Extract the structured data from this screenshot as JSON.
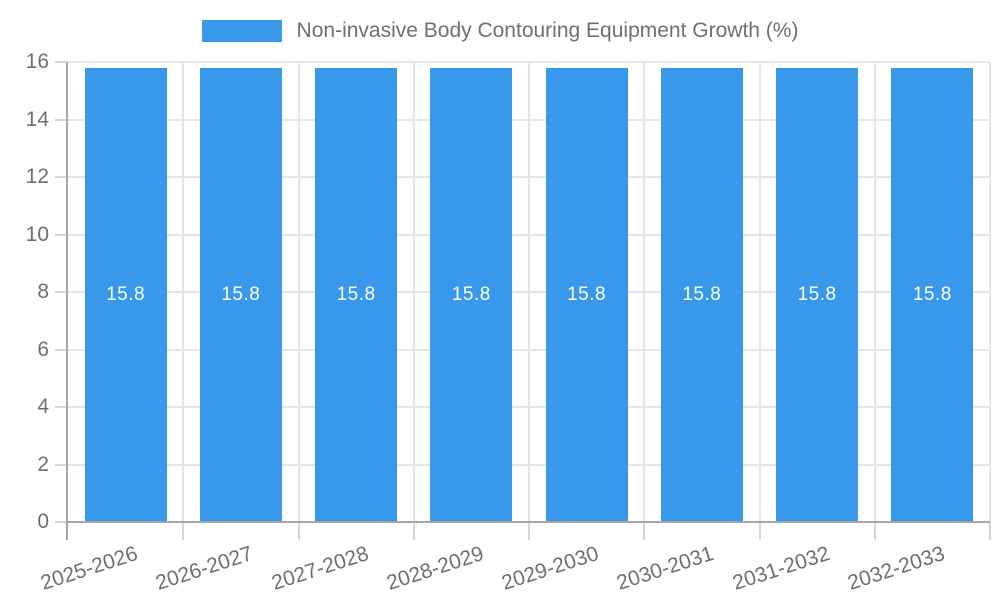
{
  "chart_data": {
    "type": "bar",
    "title": "Non-invasive Body Contouring Equipment Growth (%)",
    "legend_position": "top",
    "grid": true,
    "categories": [
      "2025-2026",
      "2026-2027",
      "2027-2028",
      "2028-2029",
      "2029-2030",
      "2030-2031",
      "2031-2032",
      "2032-2033"
    ],
    "values": [
      15.8,
      15.8,
      15.8,
      15.8,
      15.8,
      15.8,
      15.8,
      15.8
    ],
    "bar_labels": [
      "15.8",
      "15.8",
      "15.8",
      "15.8",
      "15.8",
      "15.8",
      "15.8",
      "15.8"
    ],
    "xlabel": "",
    "ylabel": "",
    "ylim": [
      0,
      16
    ],
    "yticks": [
      0,
      2,
      4,
      6,
      8,
      10,
      12,
      14,
      16
    ],
    "colors": {
      "bar": "#3898EC",
      "bar_label": "#FFFFFF",
      "axis_text": "#707070",
      "axis_line": "#A6A6A6",
      "gridline": "#E6E6E6",
      "tick_line": "#D4D4D4",
      "background": "#FFFFFF"
    }
  }
}
